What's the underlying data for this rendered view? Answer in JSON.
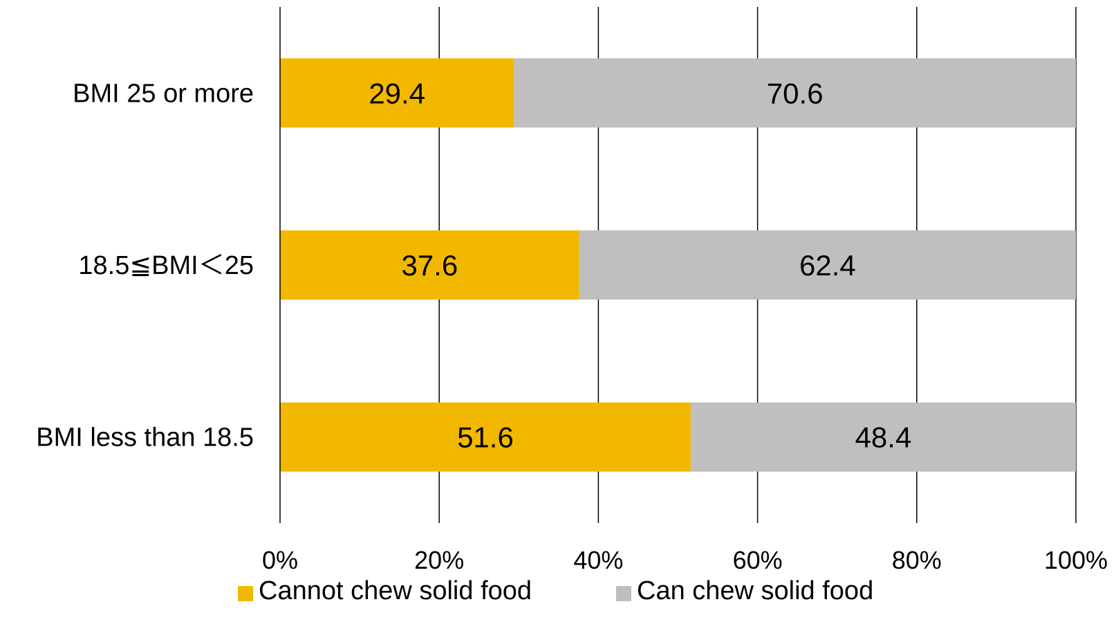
{
  "chart_data": {
    "type": "bar",
    "orientation": "horizontal",
    "stacked": "percent",
    "title": "",
    "xlabel": "",
    "ylabel": "",
    "categories": [
      "BMI 25 or more",
      "18.5≦BMI＜25",
      "BMI less than 18.5"
    ],
    "series": [
      {
        "name": "Cannot chew solid food",
        "color": "#F2B800",
        "values": [
          29.4,
          37.6,
          51.6
        ]
      },
      {
        "name": "Can chew solid food",
        "color": "#BFBFBF",
        "values": [
          70.6,
          62.4,
          48.4
        ]
      }
    ],
    "xlim": [
      0,
      100
    ],
    "xticks": [
      0,
      20,
      40,
      60,
      80,
      100
    ],
    "xtick_labels": [
      "0%",
      "20%",
      "40%",
      "60%",
      "80%",
      "100%"
    ],
    "grid": true,
    "legend_position": "bottom"
  }
}
